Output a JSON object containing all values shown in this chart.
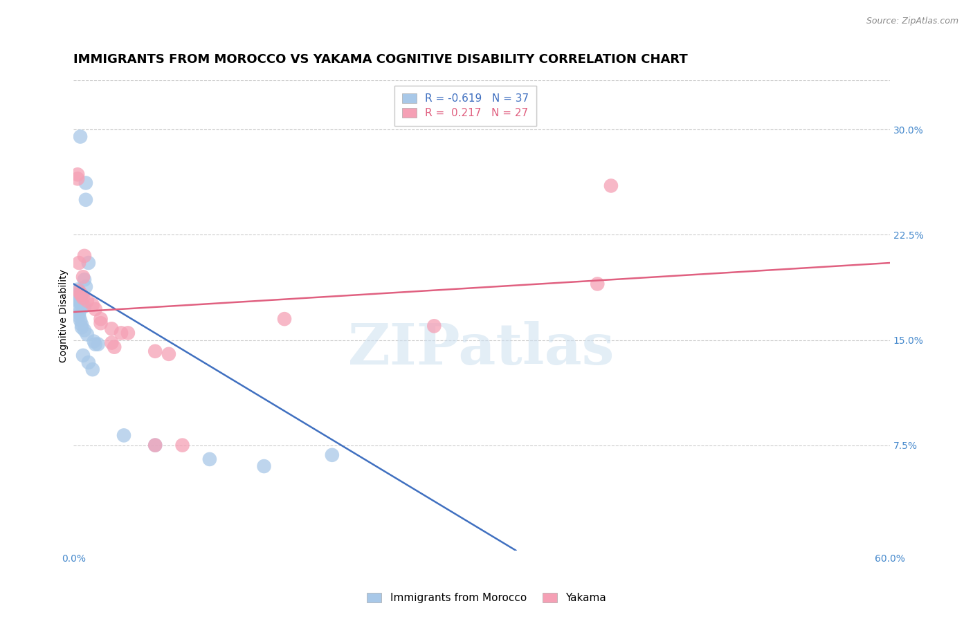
{
  "title": "IMMIGRANTS FROM MOROCCO VS YAKAMA COGNITIVE DISABILITY CORRELATION CHART",
  "source": "Source: ZipAtlas.com",
  "ylabel": "Cognitive Disability",
  "ytick_values": [
    0.075,
    0.15,
    0.225,
    0.3
  ],
  "xlim": [
    0.0,
    0.6
  ],
  "ylim": [
    0.0,
    0.335
  ],
  "watermark_text": "ZIPatlas",
  "legend_blue": "R = -0.619   N = 37",
  "legend_pink": "R =  0.217   N = 27",
  "legend2_blue": "Immigrants from Morocco",
  "legend2_pink": "Yakama",
  "blue_color": "#a8c8e8",
  "pink_color": "#f5a0b5",
  "blue_line_color": "#4070c0",
  "pink_line_color": "#e06080",
  "blue_line_x0": 0.0,
  "blue_line_x1": 0.325,
  "blue_line_y0": 0.19,
  "blue_line_y1": 0.0,
  "pink_line_x0": 0.0,
  "pink_line_x1": 0.6,
  "pink_line_y0": 0.17,
  "pink_line_y1": 0.205,
  "blue_points": [
    [
      0.005,
      0.295
    ],
    [
      0.009,
      0.25
    ],
    [
      0.009,
      0.262
    ],
    [
      0.011,
      0.205
    ],
    [
      0.008,
      0.193
    ],
    [
      0.009,
      0.188
    ],
    [
      0.003,
      0.186
    ],
    [
      0.004,
      0.183
    ],
    [
      0.004,
      0.182
    ],
    [
      0.005,
      0.183
    ],
    [
      0.005,
      0.181
    ],
    [
      0.006,
      0.182
    ],
    [
      0.003,
      0.179
    ],
    [
      0.004,
      0.177
    ],
    [
      0.005,
      0.177
    ],
    [
      0.006,
      0.175
    ],
    [
      0.007,
      0.174
    ],
    [
      0.008,
      0.174
    ],
    [
      0.003,
      0.171
    ],
    [
      0.004,
      0.169
    ],
    [
      0.004,
      0.167
    ],
    [
      0.005,
      0.164
    ],
    [
      0.006,
      0.161
    ],
    [
      0.006,
      0.159
    ],
    [
      0.008,
      0.157
    ],
    [
      0.01,
      0.154
    ],
    [
      0.015,
      0.149
    ],
    [
      0.016,
      0.147
    ],
    [
      0.018,
      0.147
    ],
    [
      0.007,
      0.139
    ],
    [
      0.011,
      0.134
    ],
    [
      0.014,
      0.129
    ],
    [
      0.037,
      0.082
    ],
    [
      0.06,
      0.075
    ],
    [
      0.1,
      0.065
    ],
    [
      0.14,
      0.06
    ],
    [
      0.19,
      0.068
    ]
  ],
  "pink_points": [
    [
      0.003,
      0.265
    ],
    [
      0.004,
      0.205
    ],
    [
      0.007,
      0.195
    ],
    [
      0.008,
      0.21
    ],
    [
      0.004,
      0.185
    ],
    [
      0.005,
      0.183
    ],
    [
      0.006,
      0.182
    ],
    [
      0.007,
      0.18
    ],
    [
      0.01,
      0.178
    ],
    [
      0.014,
      0.175
    ],
    [
      0.016,
      0.172
    ],
    [
      0.02,
      0.165
    ],
    [
      0.02,
      0.162
    ],
    [
      0.028,
      0.158
    ],
    [
      0.035,
      0.155
    ],
    [
      0.04,
      0.155
    ],
    [
      0.028,
      0.148
    ],
    [
      0.03,
      0.145
    ],
    [
      0.06,
      0.142
    ],
    [
      0.07,
      0.14
    ],
    [
      0.06,
      0.075
    ],
    [
      0.08,
      0.075
    ],
    [
      0.155,
      0.165
    ],
    [
      0.265,
      0.16
    ],
    [
      0.385,
      0.19
    ],
    [
      0.395,
      0.26
    ],
    [
      0.003,
      0.268
    ]
  ],
  "background_color": "#ffffff",
  "grid_color": "#cccccc",
  "title_fontsize": 13,
  "axis_label_fontsize": 10,
  "tick_fontsize": 10,
  "legend_fontsize": 11,
  "source_fontsize": 9
}
